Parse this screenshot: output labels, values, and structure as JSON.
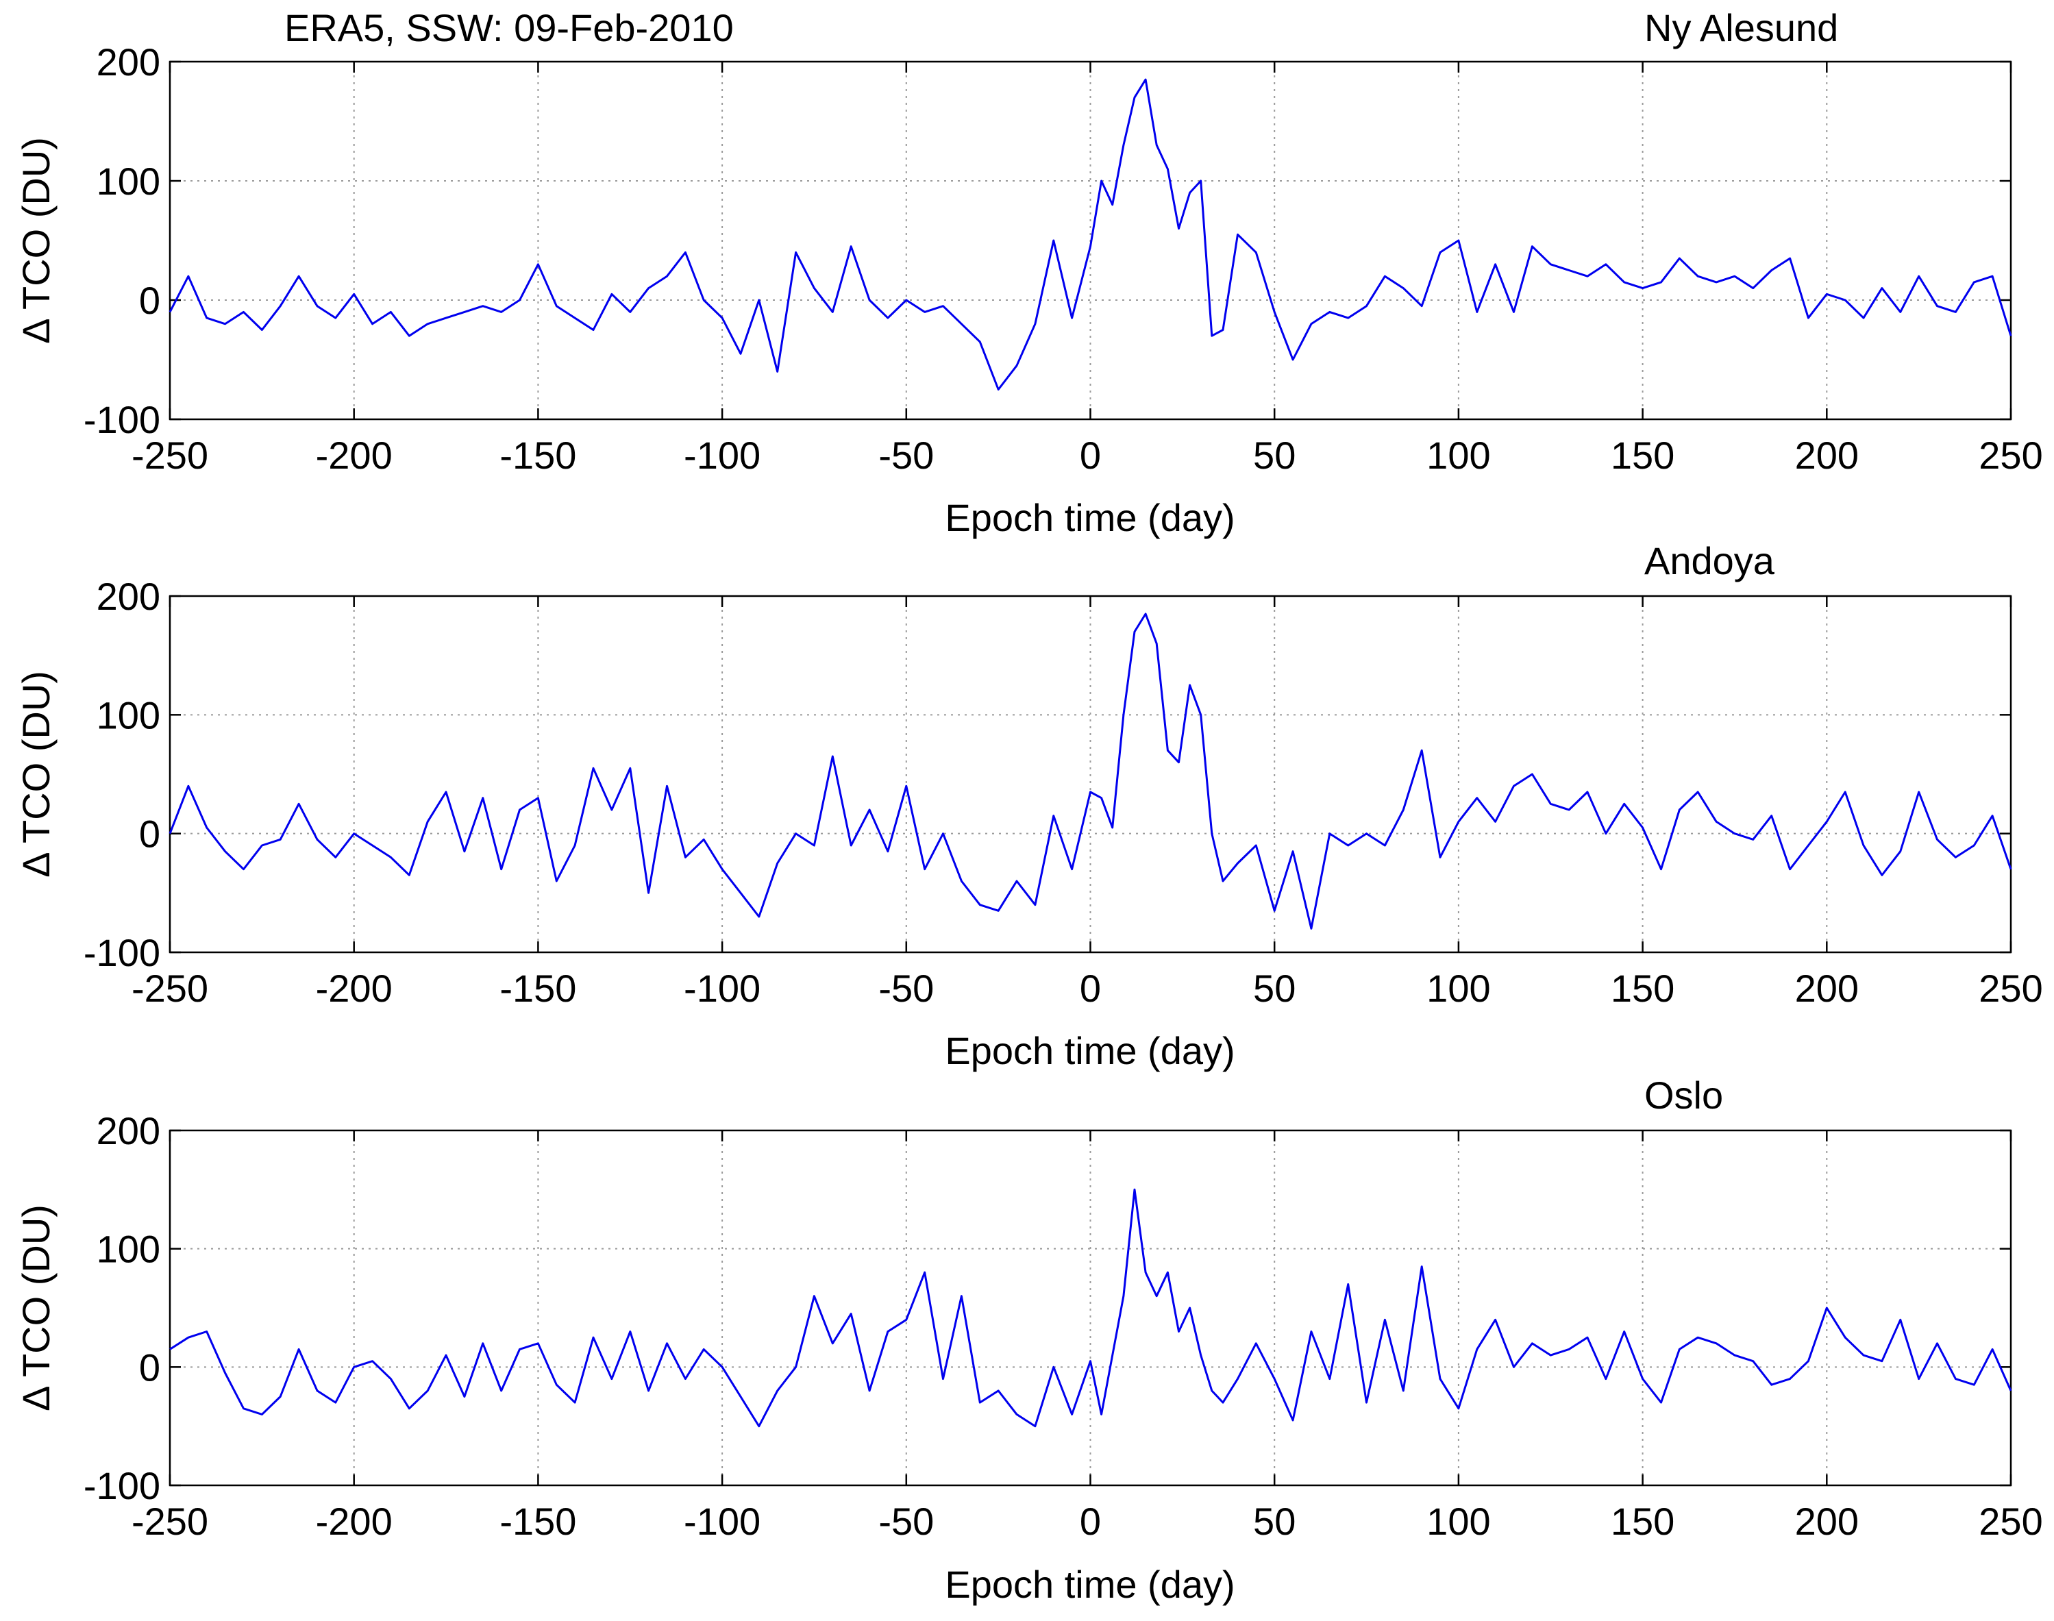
{
  "chart_data": [
    {
      "type": "line",
      "title_left": "ERA5, SSW: 09-Feb-2010",
      "title": "Ny Alesund",
      "xlabel": "Epoch time (day)",
      "ylabel": "Δ TCO (DU)",
      "xlim": [
        -250,
        250
      ],
      "ylim": [
        -100,
        200
      ],
      "xticks": [
        -250,
        -200,
        -150,
        -100,
        -50,
        0,
        50,
        100,
        150,
        200,
        250
      ],
      "yticks": [
        -100,
        0,
        100,
        200
      ],
      "grid": true,
      "series": [
        {
          "name": "Ny Alesund",
          "color": "#0000ee",
          "x": [
            -250,
            -245,
            -240,
            -235,
            -230,
            -225,
            -220,
            -215,
            -210,
            -205,
            -200,
            -195,
            -190,
            -185,
            -180,
            -175,
            -170,
            -165,
            -160,
            -155,
            -150,
            -145,
            -140,
            -135,
            -130,
            -125,
            -120,
            -115,
            -110,
            -105,
            -100,
            -95,
            -90,
            -85,
            -80,
            -75,
            -70,
            -65,
            -60,
            -55,
            -50,
            -45,
            -40,
            -35,
            -30,
            -25,
            -20,
            -15,
            -10,
            -5,
            0,
            3,
            6,
            9,
            12,
            15,
            18,
            21,
            24,
            27,
            30,
            33,
            36,
            40,
            45,
            50,
            55,
            60,
            65,
            70,
            75,
            80,
            85,
            90,
            95,
            100,
            105,
            110,
            115,
            120,
            125,
            130,
            135,
            140,
            145,
            150,
            155,
            160,
            165,
            170,
            175,
            180,
            185,
            190,
            195,
            200,
            205,
            210,
            215,
            220,
            225,
            230,
            235,
            240,
            245,
            250
          ],
          "values": [
            -10,
            20,
            -15,
            -20,
            -10,
            -25,
            -5,
            20,
            -5,
            -15,
            5,
            -20,
            -10,
            -30,
            -20,
            -15,
            -10,
            -5,
            -10,
            0,
            30,
            -5,
            -15,
            -25,
            5,
            -10,
            10,
            20,
            40,
            0,
            -15,
            -45,
            0,
            -60,
            40,
            10,
            -10,
            45,
            0,
            -15,
            0,
            -10,
            -5,
            -20,
            -35,
            -75,
            -55,
            -20,
            50,
            -15,
            45,
            100,
            80,
            130,
            170,
            185,
            130,
            110,
            60,
            90,
            100,
            -30,
            -25,
            55,
            40,
            -10,
            -50,
            -20,
            -10,
            -15,
            -5,
            20,
            10,
            -5,
            40,
            50,
            -10,
            30,
            -10,
            45,
            30,
            25,
            20,
            30,
            15,
            10,
            15,
            35,
            20,
            15,
            20,
            10,
            25,
            35,
            -15,
            5,
            0,
            -15,
            10,
            -10,
            20,
            -5,
            -10,
            15,
            20,
            -30
          ]
        }
      ]
    },
    {
      "type": "line",
      "title": "Andoya",
      "xlabel": "Epoch time (day)",
      "ylabel": "Δ TCO (DU)",
      "xlim": [
        -250,
        250
      ],
      "ylim": [
        -100,
        200
      ],
      "xticks": [
        -250,
        -200,
        -150,
        -100,
        -50,
        0,
        50,
        100,
        150,
        200,
        250
      ],
      "yticks": [
        -100,
        0,
        100,
        200
      ],
      "grid": true,
      "series": [
        {
          "name": "Andoya",
          "color": "#0000ee",
          "x": [
            -250,
            -245,
            -240,
            -235,
            -230,
            -225,
            -220,
            -215,
            -210,
            -205,
            -200,
            -195,
            -190,
            -185,
            -180,
            -175,
            -170,
            -165,
            -160,
            -155,
            -150,
            -145,
            -140,
            -135,
            -130,
            -125,
            -120,
            -115,
            -110,
            -105,
            -100,
            -95,
            -90,
            -85,
            -80,
            -75,
            -70,
            -65,
            -60,
            -55,
            -50,
            -45,
            -40,
            -35,
            -30,
            -25,
            -20,
            -15,
            -10,
            -5,
            0,
            3,
            6,
            9,
            12,
            15,
            18,
            21,
            24,
            27,
            30,
            33,
            36,
            40,
            45,
            50,
            55,
            60,
            65,
            70,
            75,
            80,
            85,
            90,
            95,
            100,
            105,
            110,
            115,
            120,
            125,
            130,
            135,
            140,
            145,
            150,
            155,
            160,
            165,
            170,
            175,
            180,
            185,
            190,
            195,
            200,
            205,
            210,
            215,
            220,
            225,
            230,
            235,
            240,
            245,
            250
          ],
          "values": [
            0,
            40,
            5,
            -15,
            -30,
            -10,
            -5,
            25,
            -5,
            -20,
            0,
            -10,
            -20,
            -35,
            10,
            35,
            -15,
            30,
            -30,
            20,
            30,
            -40,
            -10,
            55,
            20,
            55,
            -50,
            40,
            -20,
            -5,
            -30,
            -50,
            -70,
            -25,
            0,
            -10,
            65,
            -10,
            20,
            -15,
            40,
            -30,
            0,
            -40,
            -60,
            -65,
            -40,
            -60,
            15,
            -30,
            35,
            30,
            5,
            100,
            170,
            185,
            160,
            70,
            60,
            125,
            100,
            0,
            -40,
            -25,
            -10,
            -65,
            -15,
            -80,
            0,
            -10,
            0,
            -10,
            20,
            70,
            -20,
            10,
            30,
            10,
            40,
            50,
            25,
            20,
            35,
            0,
            25,
            5,
            -30,
            20,
            35,
            10,
            0,
            -5,
            15,
            -30,
            -10,
            10,
            35,
            -10,
            -35,
            -15,
            35,
            -5,
            -20,
            -10,
            15,
            -30
          ]
        }
      ]
    },
    {
      "type": "line",
      "title": "Oslo",
      "xlabel": "Epoch time (day)",
      "ylabel": "Δ TCO (DU)",
      "xlim": [
        -250,
        250
      ],
      "ylim": [
        -100,
        200
      ],
      "xticks": [
        -250,
        -200,
        -150,
        -100,
        -50,
        0,
        50,
        100,
        150,
        200,
        250
      ],
      "yticks": [
        -100,
        0,
        100,
        200
      ],
      "grid": true,
      "series": [
        {
          "name": "Oslo",
          "color": "#0000ee",
          "x": [
            -250,
            -245,
            -240,
            -235,
            -230,
            -225,
            -220,
            -215,
            -210,
            -205,
            -200,
            -195,
            -190,
            -185,
            -180,
            -175,
            -170,
            -165,
            -160,
            -155,
            -150,
            -145,
            -140,
            -135,
            -130,
            -125,
            -120,
            -115,
            -110,
            -105,
            -100,
            -95,
            -90,
            -85,
            -80,
            -75,
            -70,
            -65,
            -60,
            -55,
            -50,
            -45,
            -40,
            -35,
            -30,
            -25,
            -20,
            -15,
            -10,
            -5,
            0,
            3,
            6,
            9,
            12,
            15,
            18,
            21,
            24,
            27,
            30,
            33,
            36,
            40,
            45,
            50,
            55,
            60,
            65,
            70,
            75,
            80,
            85,
            90,
            95,
            100,
            105,
            110,
            115,
            120,
            125,
            130,
            135,
            140,
            145,
            150,
            155,
            160,
            165,
            170,
            175,
            180,
            185,
            190,
            195,
            200,
            205,
            210,
            215,
            220,
            225,
            230,
            235,
            240,
            245,
            250
          ],
          "values": [
            15,
            25,
            30,
            -5,
            -35,
            -40,
            -25,
            15,
            -20,
            -30,
            0,
            5,
            -10,
            -35,
            -20,
            10,
            -25,
            20,
            -20,
            15,
            20,
            -15,
            -30,
            25,
            -10,
            30,
            -20,
            20,
            -10,
            15,
            0,
            -25,
            -50,
            -20,
            0,
            60,
            20,
            45,
            -20,
            30,
            40,
            80,
            -10,
            60,
            -30,
            -20,
            -40,
            -50,
            0,
            -40,
            5,
            -40,
            10,
            60,
            150,
            80,
            60,
            80,
            30,
            50,
            10,
            -20,
            -30,
            -10,
            20,
            -10,
            -45,
            30,
            -10,
            70,
            -30,
            40,
            -20,
            85,
            -10,
            -35,
            15,
            40,
            0,
            20,
            10,
            15,
            25,
            -10,
            30,
            -10,
            -30,
            15,
            25,
            20,
            10,
            5,
            -15,
            -10,
            5,
            50,
            25,
            10,
            5,
            40,
            -10,
            20,
            -10,
            -15,
            15,
            -20
          ]
        }
      ]
    }
  ]
}
